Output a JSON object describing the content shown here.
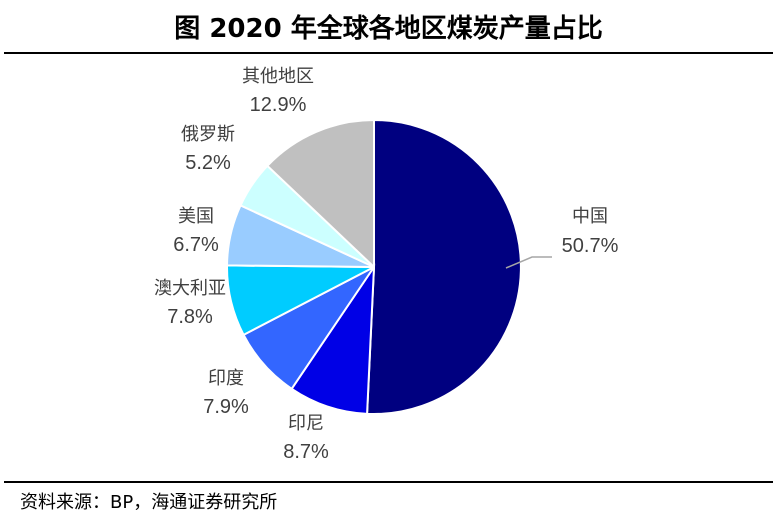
{
  "chart_data": {
    "type": "pie",
    "title": "图  2020 年全球各地区煤炭产量占比",
    "categories": [
      "中国",
      "印尼",
      "印度",
      "澳大利亚",
      "美国",
      "俄罗斯",
      "其他地区"
    ],
    "values": [
      50.7,
      8.7,
      7.9,
      7.8,
      6.7,
      5.2,
      12.9
    ],
    "value_labels": [
      "50.7%",
      "8.7%",
      "7.9%",
      "7.8%",
      "6.7%",
      "5.2%",
      "12.9%"
    ],
    "colors": [
      "#000080",
      "#0000e6",
      "#3366ff",
      "#00ccff",
      "#99ccff",
      "#ccffff",
      "#c0c0c0"
    ],
    "start_angle_deg": 0,
    "direction": "clockwise",
    "legend": "none"
  },
  "footer": {
    "source": "资料来源：BP，海通证券研究所"
  }
}
